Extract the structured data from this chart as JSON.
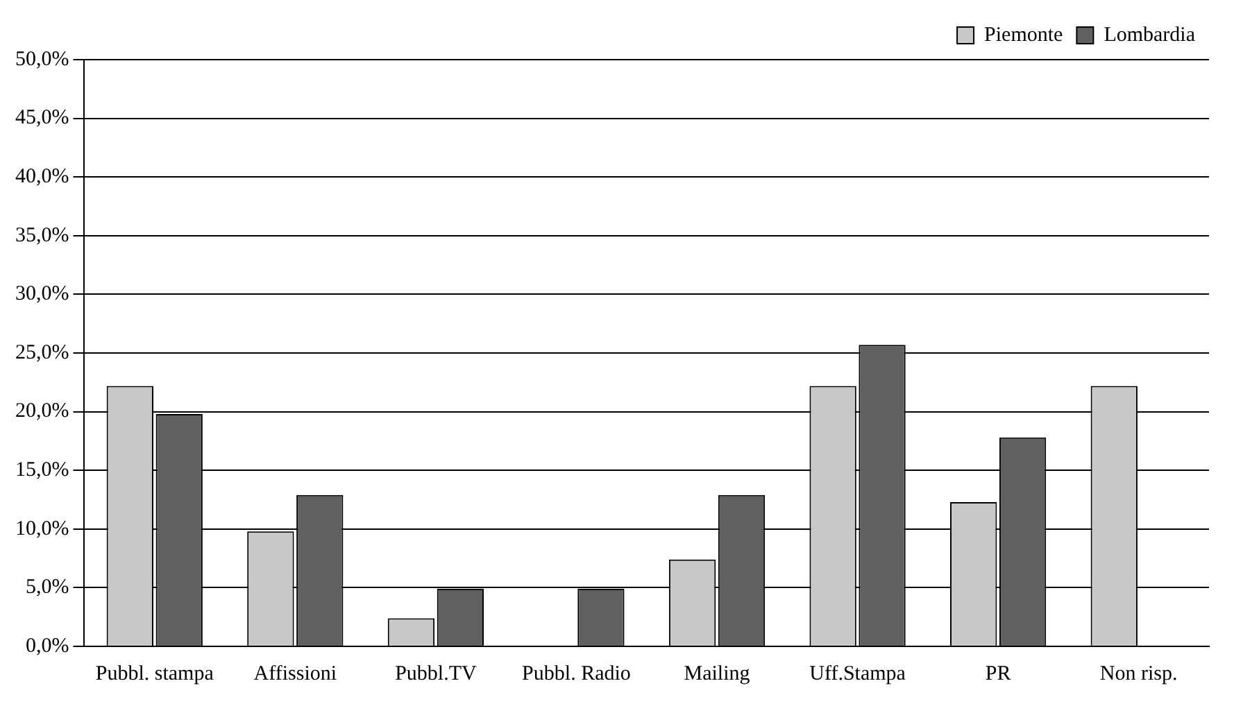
{
  "chart_data": {
    "type": "bar",
    "categories": [
      "Pubbl. stampa",
      "Affissioni",
      "Pubbl.TV",
      "Pubbl. Radio",
      "Mailing",
      "Uff.Stampa",
      "PR",
      "Non risp."
    ],
    "series": [
      {
        "name": "Piemonte",
        "color": "#c8c8c8",
        "values": [
          22.2,
          9.8,
          2.4,
          0,
          7.4,
          22.2,
          12.3,
          22.2
        ]
      },
      {
        "name": "Lombardia",
        "color": "#606060",
        "values": [
          19.8,
          12.9,
          4.9,
          4.9,
          12.9,
          25.7,
          17.8,
          0
        ]
      }
    ],
    "ylim": [
      0,
      50
    ],
    "yticks": [
      {
        "value": 0,
        "label": "0,0%"
      },
      {
        "value": 5,
        "label": "5,0%"
      },
      {
        "value": 10,
        "label": "10,0%"
      },
      {
        "value": 15,
        "label": "15,0%"
      },
      {
        "value": 20,
        "label": "20,0%"
      },
      {
        "value": 25,
        "label": "25,0%"
      },
      {
        "value": 30,
        "label": "30,0%"
      },
      {
        "value": 35,
        "label": "35,0%"
      },
      {
        "value": 40,
        "label": "40,0%"
      },
      {
        "value": 45,
        "label": "45,0%"
      },
      {
        "value": 50,
        "label": "50,0%"
      }
    ],
    "grid": "y",
    "legend": "top right"
  }
}
